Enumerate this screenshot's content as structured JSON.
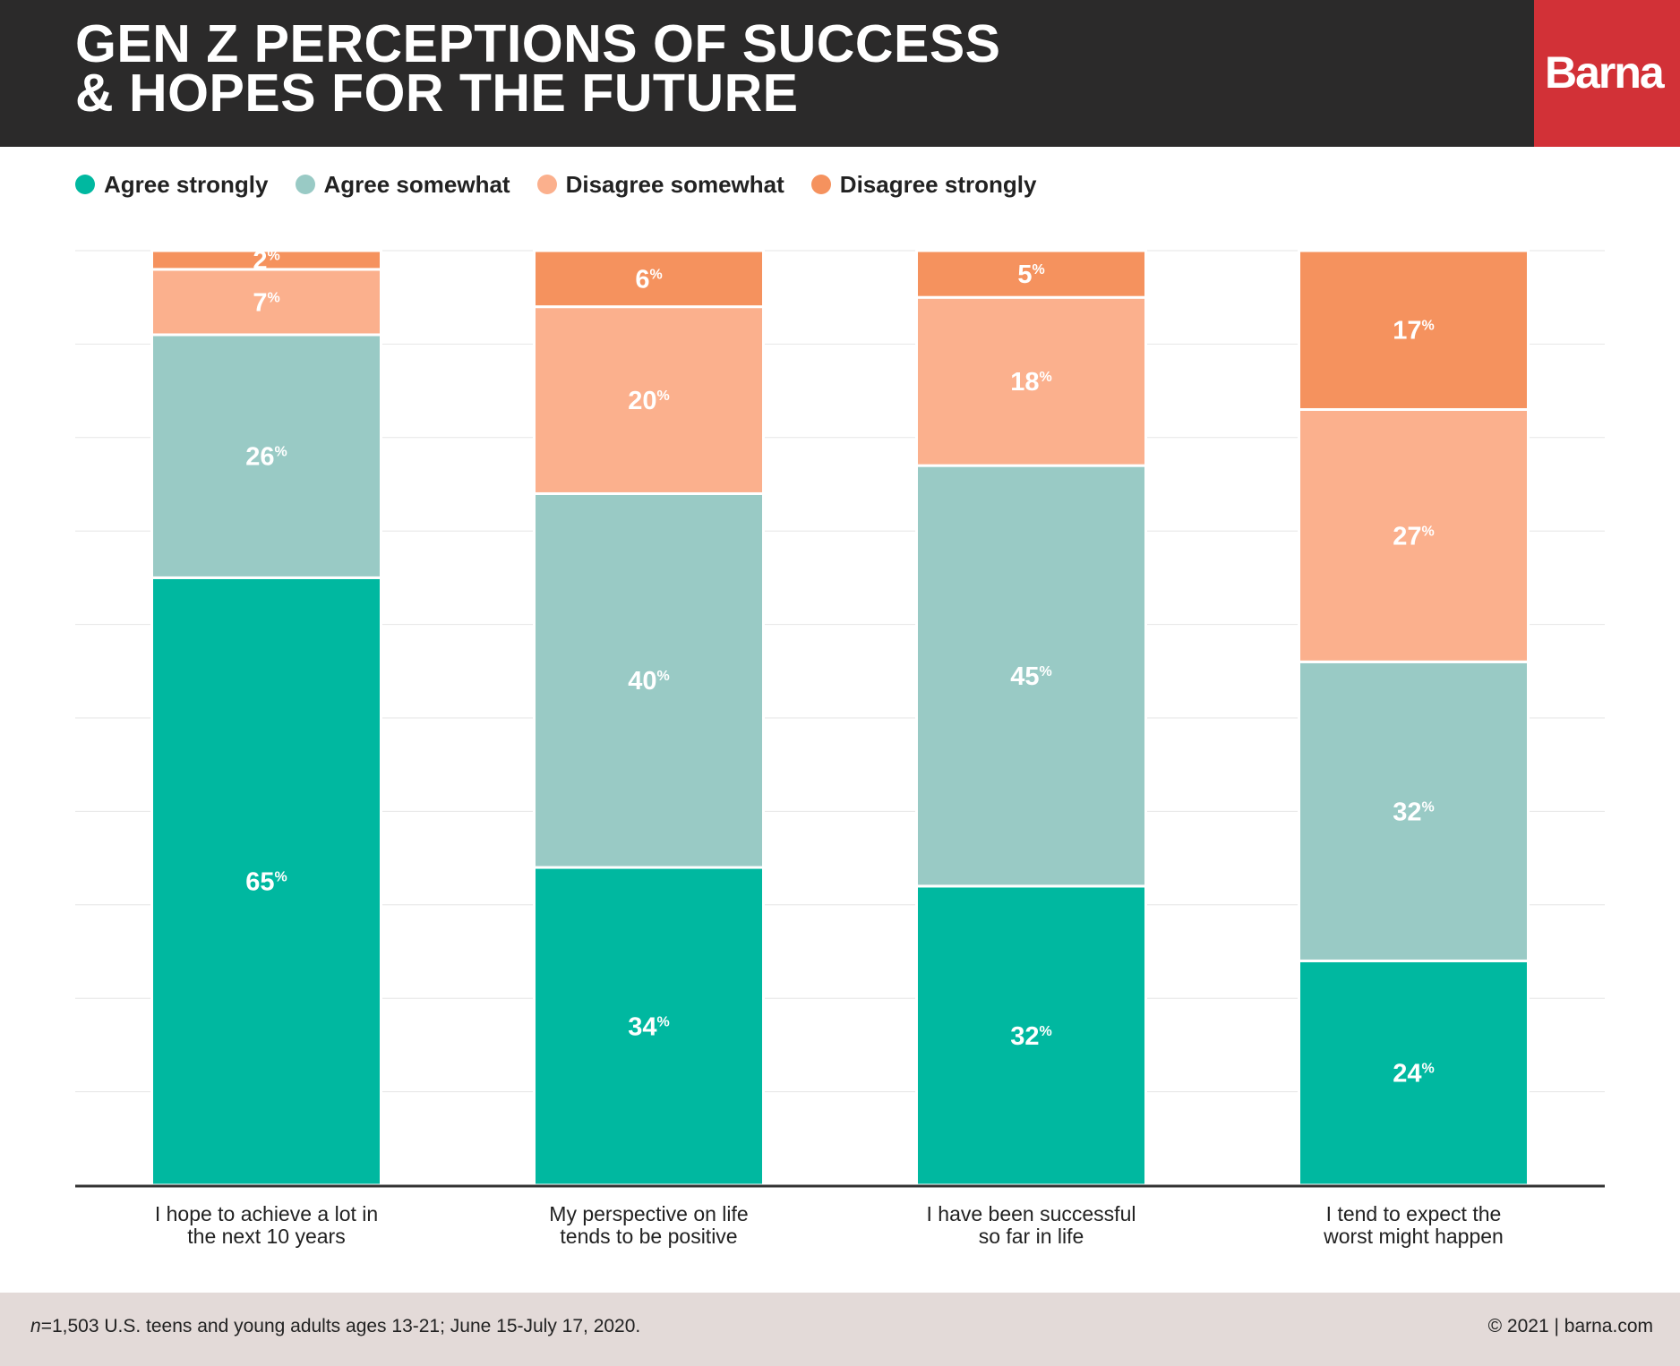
{
  "header": {
    "title_line1": "GEN Z PERCEPTIONS OF SUCCESS",
    "title_line2": "& HOPES FOR THE FUTURE",
    "logo": "Barna"
  },
  "legend": [
    {
      "label": "Agree strongly",
      "color": "#00b8a0"
    },
    {
      "label": "Agree somewhat",
      "color": "#99cac5"
    },
    {
      "label": "Disagree somewhat",
      "color": "#fbb08d"
    },
    {
      "label": "Disagree strongly",
      "color": "#f5925e"
    }
  ],
  "chart_data": {
    "type": "bar",
    "stacked": true,
    "orientation": "vertical",
    "categories": [
      [
        "I hope to achieve a lot in",
        "the next 10 years"
      ],
      [
        "My perspective on life",
        "tends to be positive"
      ],
      [
        "I have been successful",
        "so far in life"
      ],
      [
        "I tend to expect the",
        "worst might happen"
      ]
    ],
    "series": [
      {
        "name": "Agree strongly",
        "values": [
          65,
          34,
          32,
          24
        ],
        "color": "#00b8a0"
      },
      {
        "name": "Agree somewhat",
        "values": [
          26,
          40,
          45,
          32
        ],
        "color": "#99cac5"
      },
      {
        "name": "Disagree somewhat",
        "values": [
          7,
          20,
          18,
          27
        ],
        "color": "#fbb08d"
      },
      {
        "name": "Disagree strongly",
        "values": [
          2,
          6,
          5,
          17
        ],
        "color": "#f5925e"
      }
    ],
    "value_suffix": "%",
    "ylim": [
      0,
      100
    ],
    "grid": true,
    "legend_position": "top-left"
  },
  "footer": {
    "note_prefix": "n",
    "note": "=1,503 U.S. teens and young adults ages 13-21; June 15-July 17, 2020.",
    "copyright": "© 2021 | barna.com"
  }
}
